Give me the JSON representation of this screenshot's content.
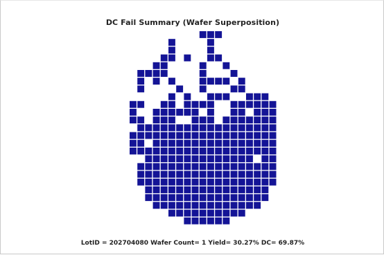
{
  "chart_data": {
    "type": "heatmap",
    "title": "DC Fail Summary (Wafer Superposition)",
    "footer": "LotID = 202704080 Wafer Count= 1 Yield= 30.27% DC= 69.87%",
    "fail_color": "#141496",
    "background_color": "#ffffff",
    "grid_rows": 25,
    "grid_cols": 22,
    "fail_dies": [
      [
        0,
        9
      ],
      [
        0,
        10
      ],
      [
        0,
        11
      ],
      [
        1,
        5
      ],
      [
        1,
        10
      ],
      [
        2,
        5
      ],
      [
        2,
        10
      ],
      [
        3,
        4
      ],
      [
        3,
        5
      ],
      [
        3,
        7
      ],
      [
        3,
        10
      ],
      [
        3,
        11
      ],
      [
        4,
        3
      ],
      [
        4,
        4
      ],
      [
        4,
        9
      ],
      [
        4,
        12
      ],
      [
        5,
        1
      ],
      [
        5,
        2
      ],
      [
        5,
        3
      ],
      [
        5,
        4
      ],
      [
        5,
        9
      ],
      [
        5,
        13
      ],
      [
        6,
        1
      ],
      [
        6,
        3
      ],
      [
        6,
        5
      ],
      [
        6,
        9
      ],
      [
        6,
        10
      ],
      [
        6,
        11
      ],
      [
        6,
        12
      ],
      [
        6,
        14
      ],
      [
        7,
        1
      ],
      [
        7,
        6
      ],
      [
        7,
        9
      ],
      [
        7,
        13
      ],
      [
        7,
        14
      ],
      [
        8,
        5
      ],
      [
        8,
        7
      ],
      [
        8,
        10
      ],
      [
        8,
        11
      ],
      [
        8,
        12
      ],
      [
        8,
        15
      ],
      [
        8,
        16
      ],
      [
        8,
        17
      ],
      [
        9,
        0
      ],
      [
        9,
        1
      ],
      [
        9,
        4
      ],
      [
        9,
        5
      ],
      [
        9,
        7
      ],
      [
        9,
        8
      ],
      [
        9,
        9
      ],
      [
        9,
        10
      ],
      [
        9,
        13
      ],
      [
        9,
        14
      ],
      [
        9,
        15
      ],
      [
        9,
        16
      ],
      [
        9,
        17
      ],
      [
        9,
        18
      ],
      [
        10,
        0
      ],
      [
        10,
        3
      ],
      [
        10,
        4
      ],
      [
        10,
        5
      ],
      [
        10,
        6
      ],
      [
        10,
        7
      ],
      [
        10,
        8
      ],
      [
        10,
        10
      ],
      [
        10,
        13
      ],
      [
        10,
        14
      ],
      [
        10,
        16
      ],
      [
        10,
        17
      ],
      [
        10,
        18
      ],
      [
        11,
        0
      ],
      [
        11,
        1
      ],
      [
        11,
        3
      ],
      [
        11,
        4
      ],
      [
        11,
        5
      ],
      [
        11,
        8
      ],
      [
        11,
        9
      ],
      [
        11,
        10
      ],
      [
        11,
        12
      ],
      [
        11,
        13
      ],
      [
        11,
        14
      ],
      [
        11,
        15
      ],
      [
        11,
        16
      ],
      [
        11,
        17
      ],
      [
        11,
        18
      ],
      [
        12,
        1
      ],
      [
        12,
        2
      ],
      [
        12,
        3
      ],
      [
        12,
        4
      ],
      [
        12,
        5
      ],
      [
        12,
        6
      ],
      [
        12,
        7
      ],
      [
        12,
        8
      ],
      [
        12,
        9
      ],
      [
        12,
        10
      ],
      [
        12,
        11
      ],
      [
        12,
        12
      ],
      [
        12,
        13
      ],
      [
        12,
        14
      ],
      [
        12,
        15
      ],
      [
        12,
        16
      ],
      [
        12,
        17
      ],
      [
        12,
        18
      ],
      [
        13,
        0
      ],
      [
        13,
        1
      ],
      [
        13,
        2
      ],
      [
        13,
        3
      ],
      [
        13,
        4
      ],
      [
        13,
        5
      ],
      [
        13,
        6
      ],
      [
        13,
        7
      ],
      [
        13,
        8
      ],
      [
        13,
        9
      ],
      [
        13,
        10
      ],
      [
        13,
        11
      ],
      [
        13,
        12
      ],
      [
        13,
        13
      ],
      [
        13,
        14
      ],
      [
        13,
        15
      ],
      [
        13,
        16
      ],
      [
        13,
        17
      ],
      [
        13,
        18
      ],
      [
        14,
        0
      ],
      [
        14,
        1
      ],
      [
        14,
        3
      ],
      [
        14,
        4
      ],
      [
        14,
        5
      ],
      [
        14,
        6
      ],
      [
        14,
        7
      ],
      [
        14,
        8
      ],
      [
        14,
        9
      ],
      [
        14,
        10
      ],
      [
        14,
        11
      ],
      [
        14,
        12
      ],
      [
        14,
        13
      ],
      [
        14,
        14
      ],
      [
        14,
        15
      ],
      [
        14,
        16
      ],
      [
        14,
        17
      ],
      [
        14,
        18
      ],
      [
        15,
        0
      ],
      [
        15,
        1
      ],
      [
        15,
        2
      ],
      [
        15,
        3
      ],
      [
        15,
        4
      ],
      [
        15,
        5
      ],
      [
        15,
        6
      ],
      [
        15,
        7
      ],
      [
        15,
        8
      ],
      [
        15,
        9
      ],
      [
        15,
        10
      ],
      [
        15,
        11
      ],
      [
        15,
        12
      ],
      [
        15,
        13
      ],
      [
        15,
        14
      ],
      [
        15,
        15
      ],
      [
        15,
        16
      ],
      [
        15,
        17
      ],
      [
        15,
        18
      ],
      [
        16,
        2
      ],
      [
        16,
        3
      ],
      [
        16,
        4
      ],
      [
        16,
        5
      ],
      [
        16,
        6
      ],
      [
        16,
        7
      ],
      [
        16,
        8
      ],
      [
        16,
        9
      ],
      [
        16,
        10
      ],
      [
        16,
        11
      ],
      [
        16,
        12
      ],
      [
        16,
        13
      ],
      [
        16,
        14
      ],
      [
        16,
        15
      ],
      [
        16,
        17
      ],
      [
        16,
        18
      ],
      [
        17,
        1
      ],
      [
        17,
        2
      ],
      [
        17,
        3
      ],
      [
        17,
        4
      ],
      [
        17,
        5
      ],
      [
        17,
        6
      ],
      [
        17,
        7
      ],
      [
        17,
        8
      ],
      [
        17,
        9
      ],
      [
        17,
        10
      ],
      [
        17,
        11
      ],
      [
        17,
        12
      ],
      [
        17,
        13
      ],
      [
        17,
        14
      ],
      [
        17,
        15
      ],
      [
        17,
        16
      ],
      [
        17,
        17
      ],
      [
        17,
        18
      ],
      [
        18,
        1
      ],
      [
        18,
        2
      ],
      [
        18,
        3
      ],
      [
        18,
        4
      ],
      [
        18,
        5
      ],
      [
        18,
        6
      ],
      [
        18,
        7
      ],
      [
        18,
        8
      ],
      [
        18,
        9
      ],
      [
        18,
        10
      ],
      [
        18,
        11
      ],
      [
        18,
        12
      ],
      [
        18,
        13
      ],
      [
        18,
        14
      ],
      [
        18,
        15
      ],
      [
        18,
        16
      ],
      [
        18,
        17
      ],
      [
        18,
        18
      ],
      [
        19,
        1
      ],
      [
        19,
        2
      ],
      [
        19,
        3
      ],
      [
        19,
        4
      ],
      [
        19,
        5
      ],
      [
        19,
        6
      ],
      [
        19,
        7
      ],
      [
        19,
        8
      ],
      [
        19,
        9
      ],
      [
        19,
        10
      ],
      [
        19,
        11
      ],
      [
        19,
        12
      ],
      [
        19,
        13
      ],
      [
        19,
        14
      ],
      [
        19,
        15
      ],
      [
        19,
        16
      ],
      [
        19,
        17
      ],
      [
        19,
        18
      ],
      [
        20,
        2
      ],
      [
        20,
        3
      ],
      [
        20,
        4
      ],
      [
        20,
        5
      ],
      [
        20,
        6
      ],
      [
        20,
        7
      ],
      [
        20,
        8
      ],
      [
        20,
        9
      ],
      [
        20,
        10
      ],
      [
        20,
        11
      ],
      [
        20,
        12
      ],
      [
        20,
        13
      ],
      [
        20,
        14
      ],
      [
        20,
        15
      ],
      [
        20,
        16
      ],
      [
        20,
        17
      ],
      [
        21,
        2
      ],
      [
        21,
        3
      ],
      [
        21,
        4
      ],
      [
        21,
        5
      ],
      [
        21,
        6
      ],
      [
        21,
        7
      ],
      [
        21,
        8
      ],
      [
        21,
        9
      ],
      [
        21,
        10
      ],
      [
        21,
        11
      ],
      [
        21,
        12
      ],
      [
        21,
        13
      ],
      [
        21,
        14
      ],
      [
        21,
        15
      ],
      [
        21,
        16
      ],
      [
        21,
        17
      ],
      [
        22,
        3
      ],
      [
        22,
        4
      ],
      [
        22,
        5
      ],
      [
        22,
        6
      ],
      [
        22,
        7
      ],
      [
        22,
        8
      ],
      [
        22,
        9
      ],
      [
        22,
        10
      ],
      [
        22,
        11
      ],
      [
        22,
        12
      ],
      [
        22,
        13
      ],
      [
        22,
        14
      ],
      [
        22,
        15
      ],
      [
        22,
        16
      ],
      [
        23,
        5
      ],
      [
        23,
        6
      ],
      [
        23,
        7
      ],
      [
        23,
        8
      ],
      [
        23,
        9
      ],
      [
        23,
        10
      ],
      [
        23,
        11
      ],
      [
        23,
        12
      ],
      [
        23,
        13
      ],
      [
        23,
        14
      ],
      [
        24,
        7
      ],
      [
        24,
        8
      ],
      [
        24,
        9
      ],
      [
        24,
        10
      ],
      [
        24,
        11
      ],
      [
        24,
        12
      ]
    ]
  }
}
